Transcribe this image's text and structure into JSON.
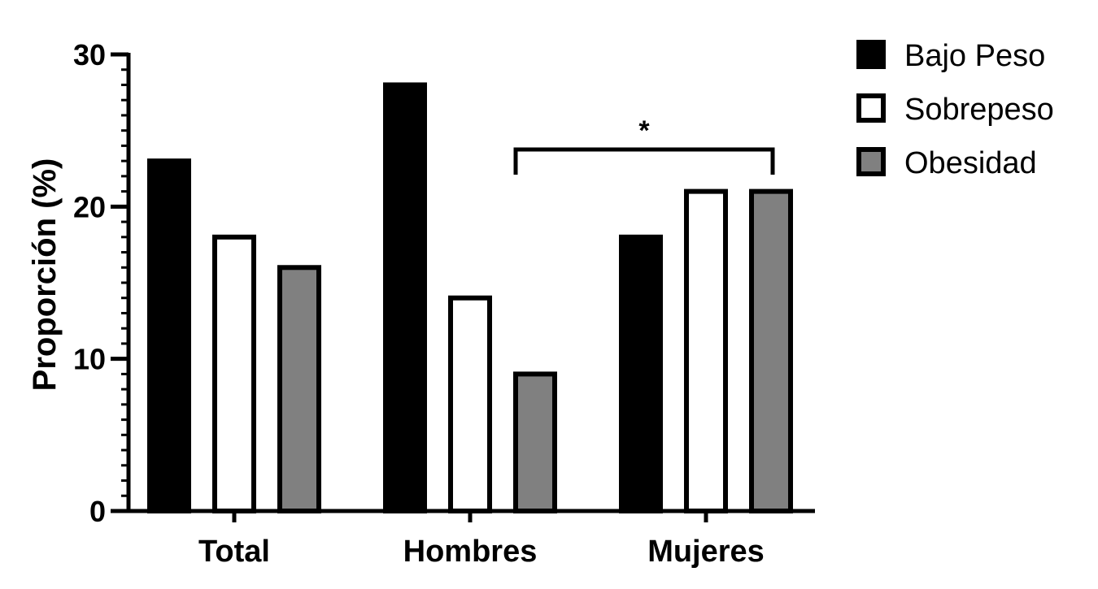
{
  "chart_data": {
    "type": "bar",
    "categories": [
      "Total",
      "Hombres",
      "Mujeres"
    ],
    "series": [
      {
        "name": "Bajo Peso",
        "values": [
          23,
          28,
          18
        ],
        "fill": "#000000"
      },
      {
        "name": "Sobrepeso",
        "values": [
          18,
          14,
          21
        ],
        "fill": "#ffffff"
      },
      {
        "name": "Obesidad",
        "values": [
          16,
          9,
          21
        ],
        "fill": "#808080"
      }
    ],
    "ylabel": "Proporción (%)",
    "xlabel": "",
    "ylim": [
      0,
      30
    ],
    "yticks": [
      "0",
      "10",
      "20",
      "30"
    ],
    "legend_position": "top-right",
    "grid": false,
    "annotations": [
      {
        "text": "*",
        "from": {
          "category": "Hombres",
          "series": "Obesidad"
        },
        "to": {
          "category": "Mujeres",
          "series": "Obesidad"
        }
      }
    ]
  }
}
